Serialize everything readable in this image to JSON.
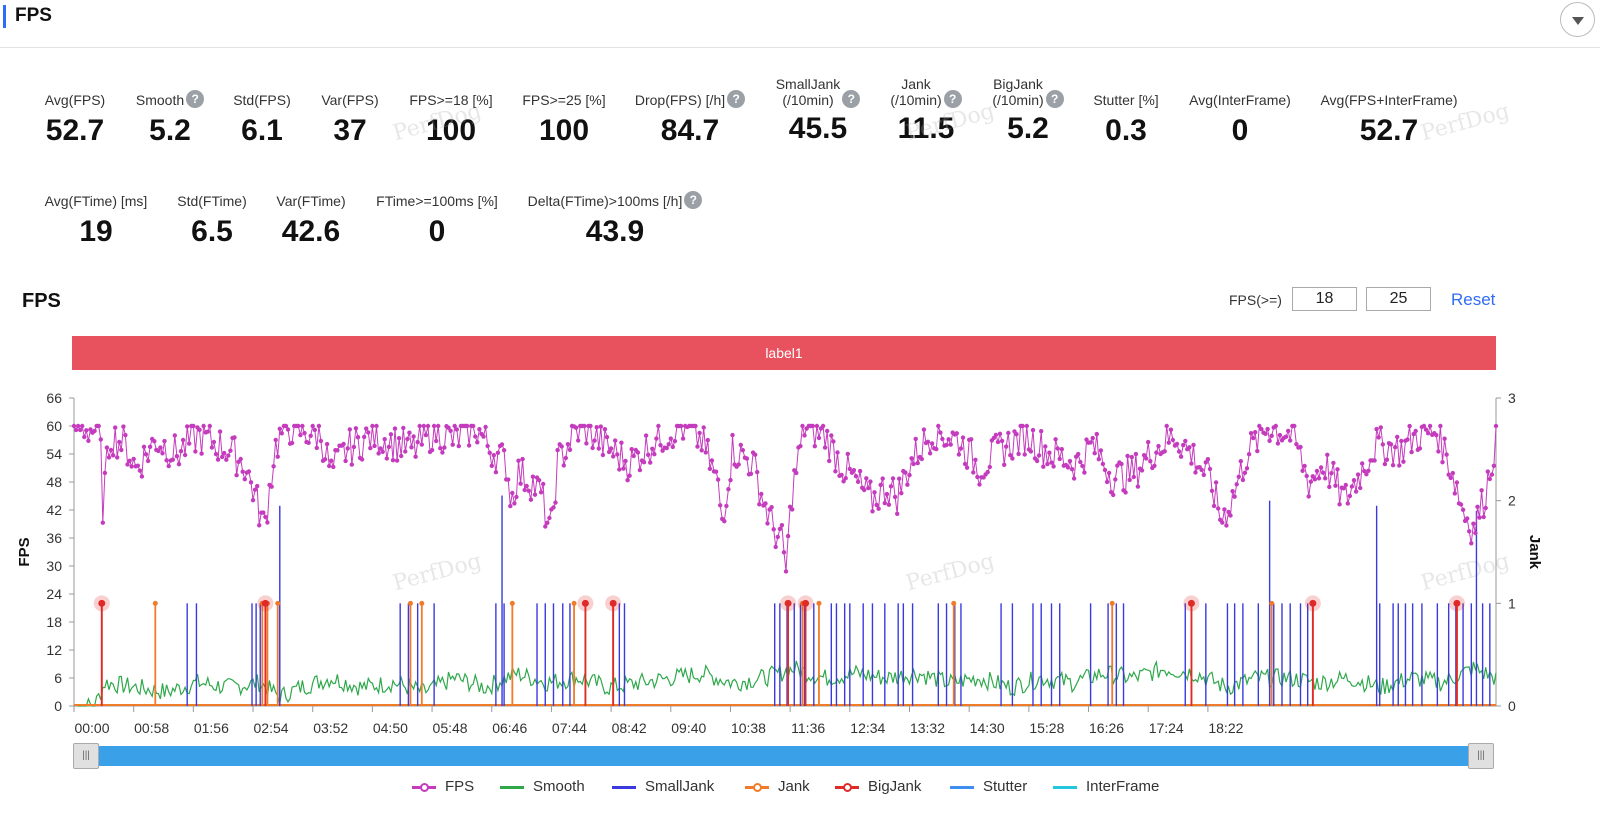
{
  "header": {
    "title": "FPS"
  },
  "metrics_row1": [
    {
      "label": "Avg(FPS)",
      "value": "52.7",
      "help": false
    },
    {
      "label": "Smooth",
      "value": "5.2",
      "help": true
    },
    {
      "label": "Std(FPS)",
      "value": "6.1",
      "help": false
    },
    {
      "label": "Var(FPS)",
      "value": "37",
      "help": false
    },
    {
      "label": "FPS>=18 [%]",
      "value": "100",
      "help": false
    },
    {
      "label": "FPS>=25 [%]",
      "value": "100",
      "help": false
    },
    {
      "label": "Drop(FPS) [/h]",
      "value": "84.7",
      "help": true
    },
    {
      "label": "SmallJank\n(/10min)",
      "value": "45.5",
      "help": true
    },
    {
      "label": "Jank\n(/10min)",
      "value": "11.5",
      "help": true
    },
    {
      "label": "BigJank\n(/10min)",
      "value": "5.2",
      "help": true
    },
    {
      "label": "Stutter [%]",
      "value": "0.3",
      "help": false
    },
    {
      "label": "Avg(InterFrame)",
      "value": "0",
      "help": false
    },
    {
      "label": "Avg(FPS+InterFrame)",
      "value": "52.7",
      "help": false
    }
  ],
  "metrics_row2": [
    {
      "label": "Avg(FTime) [ms]",
      "value": "19",
      "help": false
    },
    {
      "label": "Std(FTime)",
      "value": "6.5",
      "help": false
    },
    {
      "label": "Var(FTime)",
      "value": "42.6",
      "help": false
    },
    {
      "label": "FTime>=100ms [%]",
      "value": "0",
      "help": false
    },
    {
      "label": "Delta(FTime)>100ms [/h]",
      "value": "43.9",
      "help": true
    }
  ],
  "watermark_text": "PerfDog",
  "chart_section": {
    "title": "FPS",
    "threshold_label": "FPS(>=)",
    "threshold_1": "18",
    "threshold_2": "25",
    "reset_label": "Reset",
    "label_bar": "label1",
    "scroll_handle_glyph": "|||"
  },
  "legend": [
    {
      "name": "FPS",
      "color": "#c43cbd",
      "dot": true
    },
    {
      "name": "Smooth",
      "color": "#2ea84a",
      "dot": false
    },
    {
      "name": "SmallJank",
      "color": "#3a3adf",
      "dot": false
    },
    {
      "name": "Jank",
      "color": "#f07b28",
      "dot": true
    },
    {
      "name": "BigJank",
      "color": "#e02a2a",
      "dot": true
    },
    {
      "name": "Stutter",
      "color": "#3d8ef0",
      "dot": false
    },
    {
      "name": "InterFrame",
      "color": "#22c6de",
      "dot": false
    }
  ],
  "chart_data": {
    "type": "line",
    "x_tick_labels": [
      "00:00",
      "00:58",
      "01:56",
      "02:54",
      "03:52",
      "04:50",
      "05:48",
      "06:46",
      "07:44",
      "08:42",
      "09:40",
      "10:38",
      "11:36",
      "12:34",
      "13:32",
      "14:30",
      "15:28",
      "16:26",
      "17:24",
      "18:22"
    ],
    "x_range_seconds": [
      0,
      1382
    ],
    "ylabel": "FPS",
    "ylim": [
      0,
      66
    ],
    "y_ticks": [
      0,
      6,
      12,
      18,
      24,
      30,
      36,
      42,
      48,
      54,
      60,
      66
    ],
    "y2label": "Jank",
    "y2lim": [
      0,
      3
    ],
    "y2_ticks": [
      0,
      1,
      2,
      3
    ],
    "series": [
      {
        "name": "FPS",
        "color": "#c43cbd",
        "keyframes": [
          [
            0,
            60
          ],
          [
            25,
            59
          ],
          [
            28,
            43
          ],
          [
            35,
            58
          ],
          [
            50,
            56
          ],
          [
            60,
            51
          ],
          [
            80,
            57
          ],
          [
            100,
            54
          ],
          [
            120,
            58
          ],
          [
            150,
            55
          ],
          [
            165,
            52
          ],
          [
            175,
            46
          ],
          [
            185,
            38
          ],
          [
            195,
            55
          ],
          [
            205,
            60
          ],
          [
            220,
            59
          ],
          [
            240,
            58
          ],
          [
            250,
            50
          ],
          [
            265,
            55
          ],
          [
            290,
            58
          ],
          [
            330,
            55
          ],
          [
            350,
            59
          ],
          [
            370,
            57
          ],
          [
            390,
            60
          ],
          [
            405,
            55
          ],
          [
            420,
            52
          ],
          [
            425,
            44
          ],
          [
            432,
            50
          ],
          [
            445,
            48
          ],
          [
            455,
            45
          ],
          [
            463,
            36
          ],
          [
            470,
            52
          ],
          [
            485,
            58
          ],
          [
            495,
            60
          ],
          [
            515,
            56
          ],
          [
            540,
            52
          ],
          [
            565,
            57
          ],
          [
            590,
            60
          ],
          [
            610,
            57
          ],
          [
            625,
            48
          ],
          [
            630,
            40
          ],
          [
            640,
            55
          ],
          [
            660,
            52
          ],
          [
            670,
            44
          ],
          [
            680,
            38
          ],
          [
            688,
            35
          ],
          [
            692,
            29
          ],
          [
            698,
            46
          ],
          [
            710,
            60
          ],
          [
            730,
            58
          ],
          [
            745,
            52
          ],
          [
            760,
            48
          ],
          [
            775,
            44
          ],
          [
            790,
            47
          ],
          [
            800,
            45
          ],
          [
            815,
            53
          ],
          [
            835,
            59
          ],
          [
            860,
            57
          ],
          [
            880,
            51
          ],
          [
            900,
            55
          ],
          [
            925,
            58
          ],
          [
            950,
            54
          ],
          [
            975,
            52
          ],
          [
            990,
            56
          ],
          [
            1010,
            49
          ],
          [
            1030,
            50
          ],
          [
            1050,
            55
          ],
          [
            1070,
            58
          ],
          [
            1090,
            53
          ],
          [
            1105,
            48
          ],
          [
            1115,
            40
          ],
          [
            1125,
            44
          ],
          [
            1140,
            54
          ],
          [
            1160,
            60
          ],
          [
            1185,
            58
          ],
          [
            1200,
            48
          ],
          [
            1215,
            52
          ],
          [
            1235,
            44
          ],
          [
            1250,
            50
          ],
          [
            1265,
            56
          ],
          [
            1290,
            55
          ],
          [
            1305,
            58
          ],
          [
            1325,
            59
          ],
          [
            1340,
            50
          ],
          [
            1350,
            42
          ],
          [
            1360,
            38
          ],
          [
            1370,
            44
          ],
          [
            1380,
            55
          ],
          [
            1382,
            58
          ]
        ]
      },
      {
        "name": "Smooth",
        "color": "#2ea84a",
        "keyframes": [
          [
            0,
            0
          ],
          [
            20,
            0
          ],
          [
            30,
            5
          ],
          [
            60,
            4
          ],
          [
            90,
            3
          ],
          [
            120,
            5
          ],
          [
            150,
            4
          ],
          [
            180,
            5
          ],
          [
            200,
            2
          ],
          [
            220,
            4
          ],
          [
            250,
            6
          ],
          [
            280,
            4
          ],
          [
            310,
            5
          ],
          [
            340,
            3
          ],
          [
            370,
            6
          ],
          [
            400,
            4
          ],
          [
            430,
            7
          ],
          [
            460,
            5
          ],
          [
            490,
            6
          ],
          [
            520,
            4
          ],
          [
            550,
            5
          ],
          [
            580,
            6
          ],
          [
            610,
            7
          ],
          [
            640,
            5
          ],
          [
            670,
            6
          ],
          [
            700,
            8
          ],
          [
            730,
            6
          ],
          [
            760,
            7
          ],
          [
            790,
            6
          ],
          [
            820,
            7
          ],
          [
            850,
            5
          ],
          [
            880,
            6
          ],
          [
            910,
            4
          ],
          [
            940,
            6
          ],
          [
            970,
            5
          ],
          [
            1000,
            7
          ],
          [
            1030,
            6
          ],
          [
            1060,
            8
          ],
          [
            1090,
            7
          ],
          [
            1120,
            4
          ],
          [
            1150,
            6
          ],
          [
            1180,
            6
          ],
          [
            1210,
            5
          ],
          [
            1240,
            6
          ],
          [
            1270,
            4
          ],
          [
            1300,
            6
          ],
          [
            1330,
            5
          ],
          [
            1360,
            8
          ],
          [
            1382,
            6
          ]
        ]
      },
      {
        "name": "SmallJank",
        "color": "#3a3adf",
        "spike_times": [
          110,
          119,
          173,
          177,
          181,
          200,
          317,
          325,
          334,
          350,
          410,
          418,
          450,
          458,
          466,
          475,
          482,
          524,
          530,
          535,
          681,
          686,
          693,
          700,
          706,
          710,
          719,
          736,
          741,
          749,
          754,
          767,
          776,
          788,
          801,
          806,
          815,
          840,
          848,
          856,
          862,
          901,
          912,
          932,
          940,
          950,
          958,
          988,
          1005,
          1013,
          1020,
          1080,
          1100,
          1121,
          1128,
          1136,
          1151,
          1166,
          1174,
          1182,
          1192,
          1199,
          1204,
          1269,
          1282,
          1287,
          1294,
          1301,
          1310,
          1325,
          1336,
          1343,
          1350,
          1358,
          1369,
          1376
        ],
        "tall_spikes": [
          [
            200,
            1.95
          ],
          [
            416,
            2.05
          ],
          [
            1162,
            2.0
          ],
          [
            1266,
            1.95
          ],
          [
            1363,
            1.9
          ]
        ]
      },
      {
        "name": "Jank",
        "color": "#f07b28",
        "spike_times": [
          27,
          79,
          183,
          188,
          198,
          327,
          338,
          426,
          486,
          497,
          524,
          694,
          708,
          724,
          855,
          1009,
          1086,
          1164,
          1204,
          1344
        ]
      },
      {
        "name": "BigJank",
        "color": "#e02a2a",
        "spike_times": [
          27,
          186,
          497,
          524,
          694,
          711,
          1086,
          1204,
          1344
        ]
      },
      {
        "name": "Stutter",
        "color": "#3d8ef0",
        "values": []
      },
      {
        "name": "InterFrame",
        "color": "#22c6de",
        "values": []
      }
    ]
  }
}
